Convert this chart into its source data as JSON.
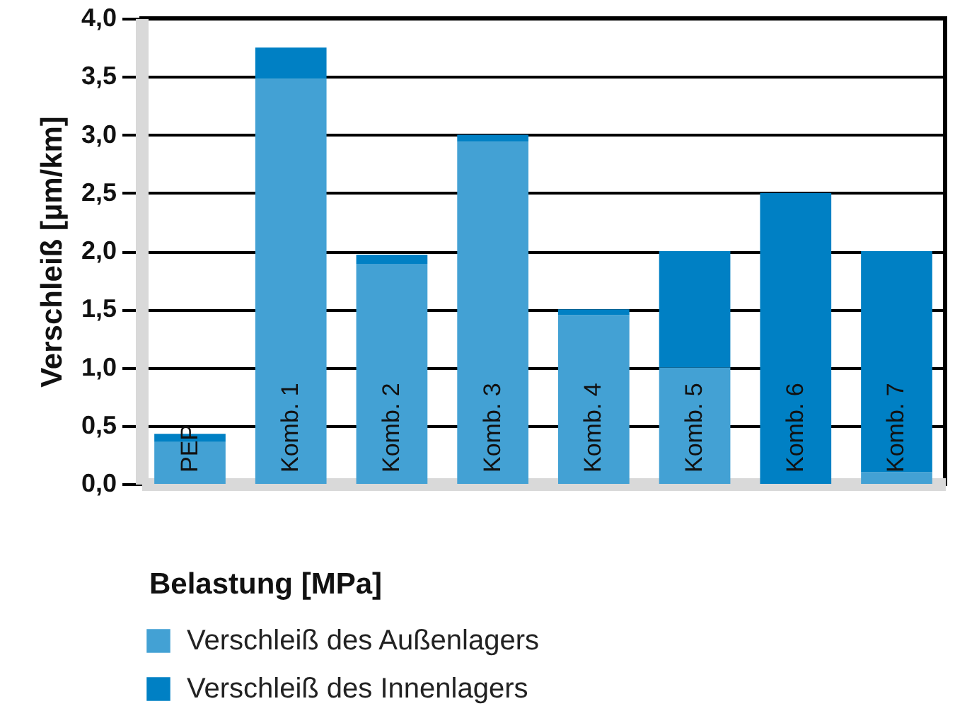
{
  "chart_data": {
    "type": "bar",
    "stacked": true,
    "ylabel": "Verschleiß [µm/km]",
    "xlabel": "Belastung [MPa]",
    "categories": [
      "PEP",
      "Komb. 1",
      "Komb. 2",
      "Komb. 3",
      "Komb. 4",
      "Komb. 5",
      "Komb. 6",
      "Komb. 7"
    ],
    "series": [
      {
        "name": "Verschleiß des Außenlagers",
        "color": "#43a1d4",
        "values": [
          0.36,
          3.48,
          1.89,
          2.94,
          1.45,
          1.0,
          0,
          0.1
        ]
      },
      {
        "name": "Verschleiß des Innenlagers",
        "color": "#0080c4",
        "values": [
          0.07,
          0.27,
          0.08,
          0.06,
          0.05,
          1.0,
          2.5,
          1.9
        ]
      }
    ],
    "ylim": [
      0,
      4
    ],
    "yticks": [
      {
        "value": 0,
        "label": "0,0"
      },
      {
        "value": 0.5,
        "label": "0,5"
      },
      {
        "value": 1,
        "label": "1,0"
      },
      {
        "value": 1.5,
        "label": "1,5"
      },
      {
        "value": 2,
        "label": "2,0"
      },
      {
        "value": 2.5,
        "label": "2,5"
      },
      {
        "value": 3,
        "label": "3,0"
      },
      {
        "value": 3.5,
        "label": "3,5"
      },
      {
        "value": 4,
        "label": "4,0"
      }
    ],
    "grid": "y",
    "legend": "bottom"
  }
}
